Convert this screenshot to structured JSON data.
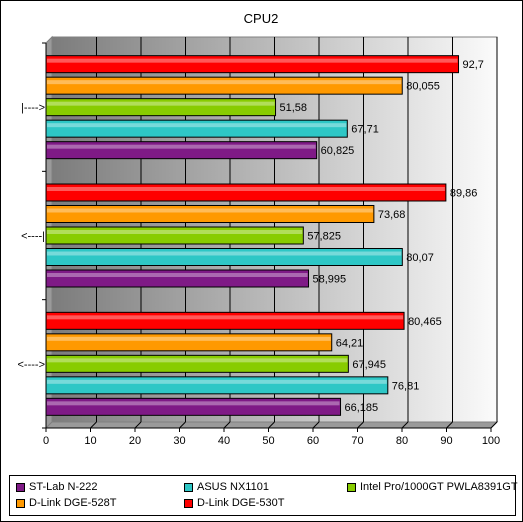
{
  "chart_data": {
    "type": "bar",
    "orientation": "horizontal",
    "title": "CPU2",
    "categories": [
      "|---->",
      "<----|",
      "<---->"
    ],
    "series": [
      {
        "name": "ST-Lab N-222",
        "color": "#7f1a86",
        "values": [
          60.825,
          58.995,
          66.185
        ],
        "labels": [
          "60,825",
          "58,995",
          "66,185"
        ]
      },
      {
        "name": "ASUS NX1101",
        "color": "#2ec7c6",
        "values": [
          67.71,
          80.07,
          76.81
        ],
        "labels": [
          "67,71",
          "80,07",
          "76,81"
        ]
      },
      {
        "name": "Intel Pro/1000GT PWLA8391GT",
        "color": "#88cc00",
        "values": [
          51.58,
          57.825,
          67.945
        ],
        "labels": [
          "51,58",
          "57,825",
          "67,945"
        ]
      },
      {
        "name": "D-Link DGE-528T",
        "color": "#ff9900",
        "values": [
          80.055,
          73.68,
          64.21
        ],
        "labels": [
          "80,055",
          "73,68",
          "64,21"
        ]
      },
      {
        "name": "D-Link DGE-530T",
        "color": "#ff0000",
        "values": [
          92.7,
          89.86,
          80.465
        ],
        "labels": [
          "92,7",
          "89,86",
          "80,465"
        ]
      }
    ],
    "xlim": [
      0,
      100
    ],
    "xticks": [
      "0",
      "10",
      "20",
      "30",
      "40",
      "50",
      "60",
      "70",
      "80",
      "90",
      "100"
    ],
    "grid": true,
    "legend_position": "bottom"
  }
}
